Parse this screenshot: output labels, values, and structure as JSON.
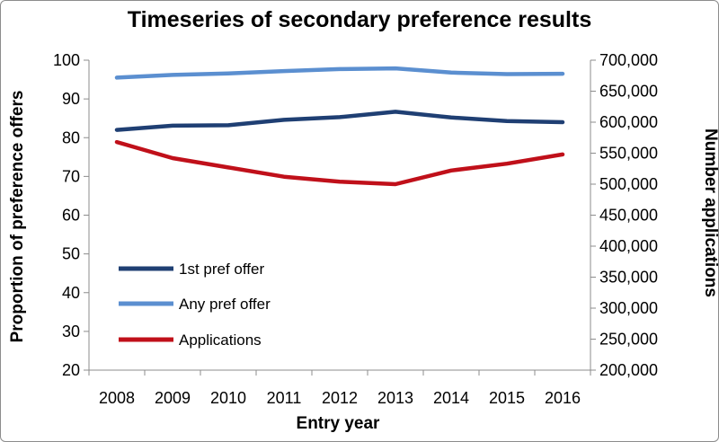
{
  "chart_data": {
    "type": "line",
    "title": "Timeseries of secondary preference results",
    "xlabel": "Entry year",
    "ylabel": "Proportion of preference offers",
    "y2label": "Number applications",
    "categories": [
      "2008",
      "2009",
      "2010",
      "2011",
      "2012",
      "2013",
      "2014",
      "2015",
      "2016"
    ],
    "ylim": [
      20,
      100
    ],
    "y_ticks": [
      "20",
      "30",
      "40",
      "50",
      "60",
      "70",
      "80",
      "90",
      "100"
    ],
    "y2lim": [
      200000,
      700000
    ],
    "y2_ticks": [
      "200,000",
      "250,000",
      "300,000",
      "350,000",
      "400,000",
      "450,000",
      "500,000",
      "550,000",
      "600,000",
      "650,000",
      "700,000"
    ],
    "grid": false,
    "legend_position": "bottom-left",
    "series": [
      {
        "name": "1st pref offer",
        "axis": "left",
        "color": "#1f3f73",
        "values": [
          82.0,
          83.1,
          83.2,
          84.6,
          85.3,
          86.7,
          85.2,
          84.3,
          84.0
        ]
      },
      {
        "name": "Any pref offer",
        "axis": "left",
        "color": "#5b8fd0",
        "values": [
          95.5,
          96.2,
          96.6,
          97.2,
          97.7,
          97.9,
          96.8,
          96.4,
          96.5
        ]
      },
      {
        "name": "Applications",
        "axis": "right",
        "color": "#c0101a",
        "values": [
          568000,
          542000,
          527000,
          512000,
          504000,
          500000,
          522000,
          533000,
          548000
        ]
      }
    ]
  }
}
